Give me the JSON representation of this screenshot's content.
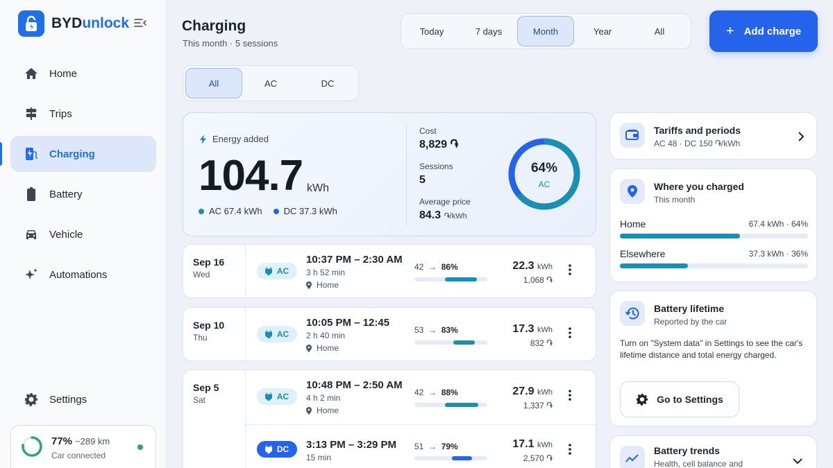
{
  "app": {
    "name_a": "BYD",
    "name_b": "unlock"
  },
  "nav": {
    "items": [
      {
        "label": "Home",
        "icon": "home-icon"
      },
      {
        "label": "Trips",
        "icon": "signpost-icon"
      },
      {
        "label": "Charging",
        "icon": "ev-charger-icon"
      },
      {
        "label": "Battery",
        "icon": "battery-icon"
      },
      {
        "label": "Vehicle",
        "icon": "car-icon"
      },
      {
        "label": "Automations",
        "icon": "sparkle-icon"
      }
    ],
    "settings": "Settings"
  },
  "car": {
    "percent": "77%",
    "range": "~289 km",
    "status": "Car connected",
    "level": 0.77
  },
  "header": {
    "title": "Charging",
    "subtitle": "This month · 5 sessions"
  },
  "periods": [
    "Today",
    "7 days",
    "Month",
    "Year",
    "All"
  ],
  "period_selected": "Month",
  "add_button": "Add charge",
  "types": [
    "All",
    "AC",
    "DC"
  ],
  "summary": {
    "energy_label": "Energy added",
    "energy_value": "104.7",
    "energy_unit": "kWh",
    "ac_split": "AC 67.4 kWh",
    "dc_split": "DC 37.3 kWh",
    "cost_label": "Cost",
    "cost_value": "8,829 ֏",
    "sessions_label": "Sessions",
    "sessions_value": "5",
    "avg_label": "Average price",
    "avg_value": "84.3",
    "avg_unit": "֏/kWh",
    "ac_percent": "64%",
    "ac_label": "AC",
    "ac_fraction": 0.64
  },
  "sessions": [
    {
      "date": "Sep 16",
      "day": "Wed",
      "rows": [
        {
          "type": "AC",
          "time": "10:37 PM – 2:30 AM",
          "duration": "3 h 52 min",
          "location": "Home",
          "soc_from": "42",
          "soc_to": "86%",
          "soc_start": 0.42,
          "soc_end": 0.86,
          "kwh": "22.3",
          "cost": "1,068 ֏"
        }
      ]
    },
    {
      "date": "Sep 10",
      "day": "Thu",
      "rows": [
        {
          "type": "AC",
          "time": "10:05 PM – 12:45",
          "duration": "2 h 40 min",
          "location": "Home",
          "soc_from": "53",
          "soc_to": "83%",
          "soc_start": 0.53,
          "soc_end": 0.83,
          "kwh": "17.3",
          "cost": "832 ֏"
        }
      ]
    },
    {
      "date": "Sep 5",
      "day": "Sat",
      "rows": [
        {
          "type": "AC",
          "time": "10:48 PM – 2:50 AM",
          "duration": "4 h 2 min",
          "location": "Home",
          "soc_from": "42",
          "soc_to": "88%",
          "soc_start": 0.42,
          "soc_end": 0.88,
          "kwh": "27.9",
          "cost": "1,337 ֏"
        },
        {
          "type": "DC",
          "time": "3:13 PM – 3:29 PM",
          "duration": "15 min",
          "location": "",
          "soc_from": "51",
          "soc_to": "79%",
          "soc_start": 0.51,
          "soc_end": 0.79,
          "kwh": "17.1",
          "cost": "2,570 ֏"
        }
      ]
    }
  ],
  "kwh_unit": "kWh",
  "tariffs": {
    "title": "Tariffs and periods",
    "subtitle": "AC 48 · DC 150 ֏/kWh"
  },
  "where": {
    "title": "Where you charged",
    "subtitle": "This month",
    "rows": [
      {
        "name": "Home",
        "value": "67.4 kWh · 64%",
        "fraction": 0.64
      },
      {
        "name": "Elsewhere",
        "value": "37.3 kWh · 36%",
        "fraction": 0.36
      }
    ]
  },
  "battery_lifetime": {
    "title": "Battery lifetime",
    "subtitle": "Reported by the car",
    "text": "Turn on \"System data\" in Settings to see the car's lifetime distance and total energy charged.",
    "button": "Go to Settings"
  },
  "battery_trends": {
    "title": "Battery trends",
    "subtitle": "Health, cell balance and"
  },
  "colors": {
    "accent": "#2563eb",
    "ac": "#1a8fb3",
    "dc": "#2563eb",
    "connected": "#2aa86a"
  }
}
